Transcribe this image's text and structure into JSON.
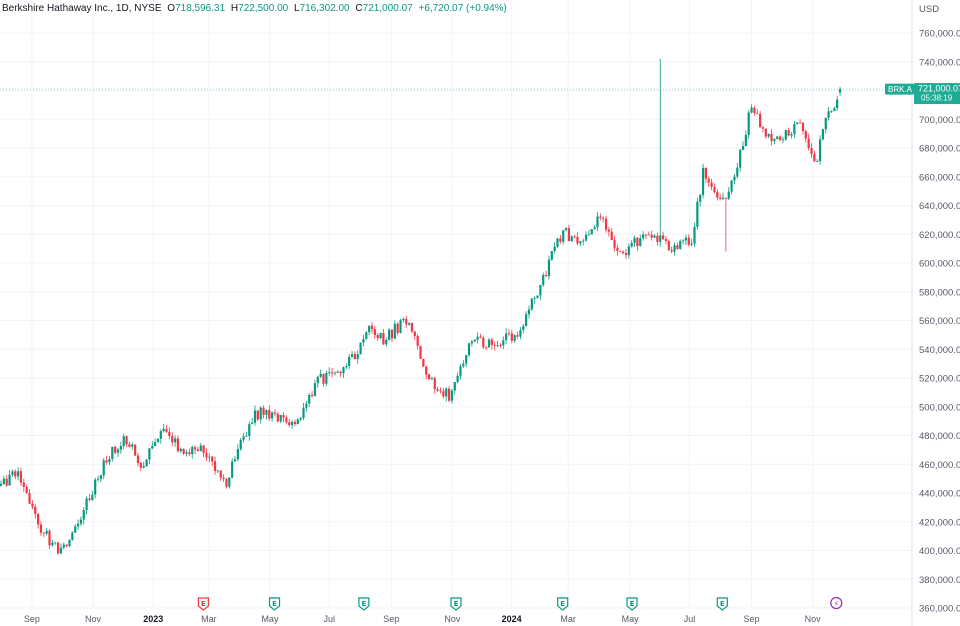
{
  "header": {
    "title": "Berkshire Hathaway Inc., 1D, NYSE",
    "o_label": "O",
    "o_value": "718,596.31",
    "h_label": "H",
    "h_value": "722,500.00",
    "l_label": "L",
    "l_value": "716,302.00",
    "c_label": "C",
    "c_value": "721,000.07",
    "change": "+6,720.07 (+0.94%)"
  },
  "axis": {
    "currency": "USD",
    "price_ticks": [
      "760,000.00",
      "740,000.00",
      "720,000.00",
      "700,000.00",
      "680,000.00",
      "660,000.00",
      "640,000.00",
      "620,000.00",
      "600,000.00",
      "580,000.00",
      "560,000.00",
      "540,000.00",
      "520,000.00",
      "500,000.00",
      "480,000.00",
      "460,000.00",
      "440,000.00",
      "420,000.00",
      "400,000.00",
      "380,000.00",
      "360,000.00"
    ],
    "time_ticks": [
      {
        "label": "Sep",
        "t": 0.035,
        "bold": false
      },
      {
        "label": "Nov",
        "t": 0.102,
        "bold": false
      },
      {
        "label": "2023",
        "t": 0.168,
        "bold": true
      },
      {
        "label": "Mar",
        "t": 0.229,
        "bold": false
      },
      {
        "label": "May",
        "t": 0.296,
        "bold": false
      },
      {
        "label": "Jul",
        "t": 0.361,
        "bold": false
      },
      {
        "label": "Sep",
        "t": 0.429,
        "bold": false
      },
      {
        "label": "Nov",
        "t": 0.496,
        "bold": false
      },
      {
        "label": "2024",
        "t": 0.561,
        "bold": true
      },
      {
        "label": "Mar",
        "t": 0.623,
        "bold": false
      },
      {
        "label": "May",
        "t": 0.691,
        "bold": false
      },
      {
        "label": "Jul",
        "t": 0.756,
        "bold": false
      },
      {
        "label": "Sep",
        "t": 0.824,
        "bold": false
      },
      {
        "label": "Nov",
        "t": 0.891,
        "bold": false
      }
    ]
  },
  "price_label": {
    "symbol": "BRK.A",
    "price": "721,000.07",
    "countdown": "05:38:19",
    "value": 721000
  },
  "events": [
    {
      "t": 0.223,
      "letter": "E",
      "type": "earnings",
      "color": "#f23645"
    },
    {
      "t": 0.301,
      "letter": "E",
      "type": "earnings",
      "color": "#089981"
    },
    {
      "t": 0.399,
      "letter": "E",
      "type": "earnings",
      "color": "#089981"
    },
    {
      "t": 0.5,
      "letter": "E",
      "type": "earnings",
      "color": "#089981"
    },
    {
      "t": 0.617,
      "letter": "E",
      "type": "earnings",
      "color": "#089981"
    },
    {
      "t": 0.693,
      "letter": "E",
      "type": "earnings",
      "color": "#089981"
    },
    {
      "t": 0.792,
      "letter": "E",
      "type": "earnings",
      "color": "#089981"
    },
    {
      "t": 0.917,
      "letter": "⚡",
      "type": "flash",
      "color": "#9c27b0"
    }
  ],
  "colors": {
    "up": "#089981",
    "down": "#f23645",
    "grid": "#f0f3fa",
    "axis_text": "#555a66",
    "price_label_bg": "#22ab94"
  },
  "chart_data": {
    "type": "candlestick",
    "ylim": [
      360000,
      770000
    ],
    "keyframes": [
      {
        "t": 0.0,
        "v": 445000
      },
      {
        "t": 0.018,
        "v": 455000
      },
      {
        "t": 0.04,
        "v": 420000
      },
      {
        "t": 0.065,
        "v": 397000
      },
      {
        "t": 0.085,
        "v": 420000
      },
      {
        "t": 0.112,
        "v": 460000
      },
      {
        "t": 0.135,
        "v": 478000
      },
      {
        "t": 0.155,
        "v": 460000
      },
      {
        "t": 0.178,
        "v": 482000
      },
      {
        "t": 0.2,
        "v": 470000
      },
      {
        "t": 0.222,
        "v": 470000
      },
      {
        "t": 0.247,
        "v": 448000
      },
      {
        "t": 0.277,
        "v": 495000
      },
      {
        "t": 0.3,
        "v": 495000
      },
      {
        "t": 0.323,
        "v": 490000
      },
      {
        "t": 0.348,
        "v": 518000
      },
      {
        "t": 0.375,
        "v": 525000
      },
      {
        "t": 0.404,
        "v": 553000
      },
      {
        "t": 0.418,
        "v": 546000
      },
      {
        "t": 0.447,
        "v": 562000
      },
      {
        "t": 0.465,
        "v": 520000
      },
      {
        "t": 0.492,
        "v": 507000
      },
      {
        "t": 0.516,
        "v": 545000
      },
      {
        "t": 0.54,
        "v": 545000
      },
      {
        "t": 0.564,
        "v": 550000
      },
      {
        "t": 0.589,
        "v": 580000
      },
      {
        "t": 0.617,
        "v": 625000
      },
      {
        "t": 0.633,
        "v": 610000
      },
      {
        "t": 0.658,
        "v": 635000
      },
      {
        "t": 0.68,
        "v": 605000
      },
      {
        "t": 0.71,
        "v": 623000
      },
      {
        "t": 0.735,
        "v": 612000
      },
      {
        "t": 0.757,
        "v": 615000
      },
      {
        "t": 0.77,
        "v": 663000
      },
      {
        "t": 0.79,
        "v": 640000
      },
      {
        "t": 0.808,
        "v": 670000
      },
      {
        "t": 0.824,
        "v": 712000
      },
      {
        "t": 0.834,
        "v": 690000
      },
      {
        "t": 0.853,
        "v": 685000
      },
      {
        "t": 0.875,
        "v": 695000
      },
      {
        "t": 0.893,
        "v": 665000
      },
      {
        "t": 0.9,
        "v": 690000
      },
      {
        "t": 0.92,
        "v": 721000
      }
    ],
    "spikes": [
      {
        "t": 0.724,
        "high": 742000
      },
      {
        "t": 0.795,
        "low": 608000
      }
    ],
    "last": {
      "open": 718596.31,
      "high": 722500.0,
      "low": 716302.0,
      "close": 721000.07
    }
  }
}
